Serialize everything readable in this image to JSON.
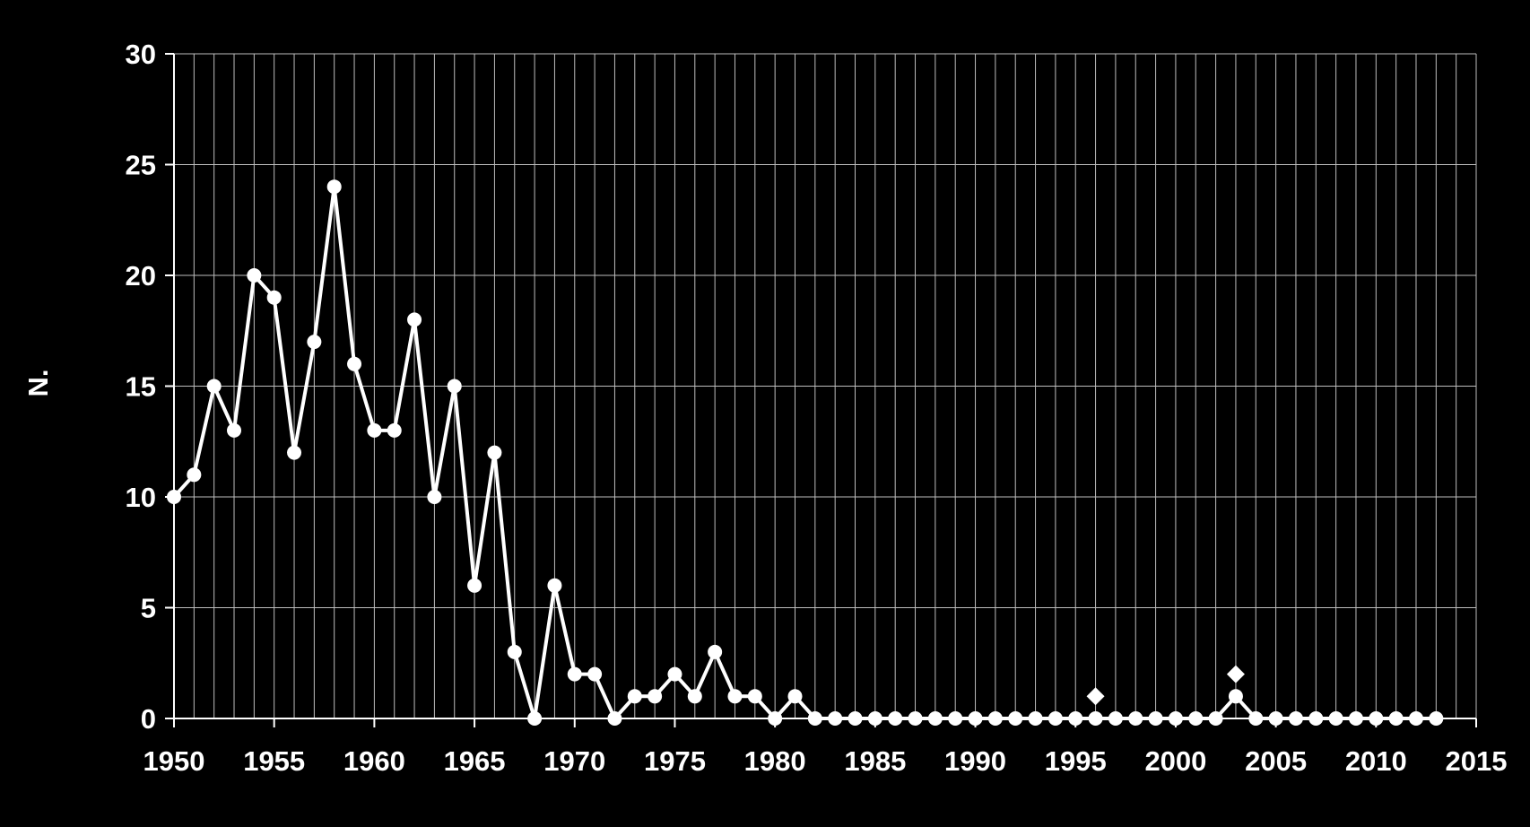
{
  "chart_data": {
    "type": "line",
    "title": "",
    "xlabel": "",
    "ylabel": "N.",
    "xlim": [
      1950,
      2015
    ],
    "ylim": [
      0,
      30
    ],
    "x_ticks": [
      "1950",
      "1955",
      "1960",
      "1965",
      "1970",
      "1975",
      "1980",
      "1985",
      "1990",
      "1995",
      "2000",
      "2005",
      "2010",
      "2015"
    ],
    "y_ticks": [
      "0",
      "5",
      "10",
      "15",
      "20",
      "25",
      "30"
    ],
    "grid": "vertical lines every year, horizontal lines every 5",
    "background_color": "#000000",
    "line_color": "#ffffff",
    "x": [
      1950,
      1951,
      1952,
      1953,
      1954,
      1955,
      1956,
      1957,
      1958,
      1959,
      1960,
      1961,
      1962,
      1963,
      1964,
      1965,
      1966,
      1967,
      1968,
      1969,
      1970,
      1971,
      1972,
      1973,
      1974,
      1975,
      1976,
      1977,
      1978,
      1979,
      1980,
      1981,
      1982,
      1983,
      1984,
      1985,
      1986,
      1987,
      1988,
      1989,
      1990,
      1991,
      1992,
      1993,
      1994,
      1995,
      1996,
      1997,
      1998,
      1999,
      2000,
      2001,
      2002,
      2003,
      2004,
      2005,
      2006,
      2007,
      2008,
      2009,
      2010,
      2011,
      2012,
      2013
    ],
    "series": [
      {
        "marker": "circle",
        "values": [
          10,
          11,
          15,
          13,
          20,
          19,
          12,
          17,
          24,
          16,
          13,
          13,
          18,
          10,
          15,
          6,
          12,
          3,
          0,
          6,
          2,
          2,
          0,
          1,
          1,
          2,
          1,
          3,
          1,
          1,
          0,
          1,
          0,
          0,
          0,
          0,
          0,
          0,
          0,
          0,
          0,
          0,
          0,
          0,
          0,
          0,
          0,
          0,
          0,
          0,
          0,
          0,
          0,
          1,
          0,
          0,
          0,
          0,
          0,
          0,
          0,
          0,
          0,
          0
        ]
      },
      {
        "marker": "diamond",
        "points": [
          {
            "x": 1996,
            "y": 1
          },
          {
            "x": 2003,
            "y": 2
          }
        ]
      }
    ]
  }
}
